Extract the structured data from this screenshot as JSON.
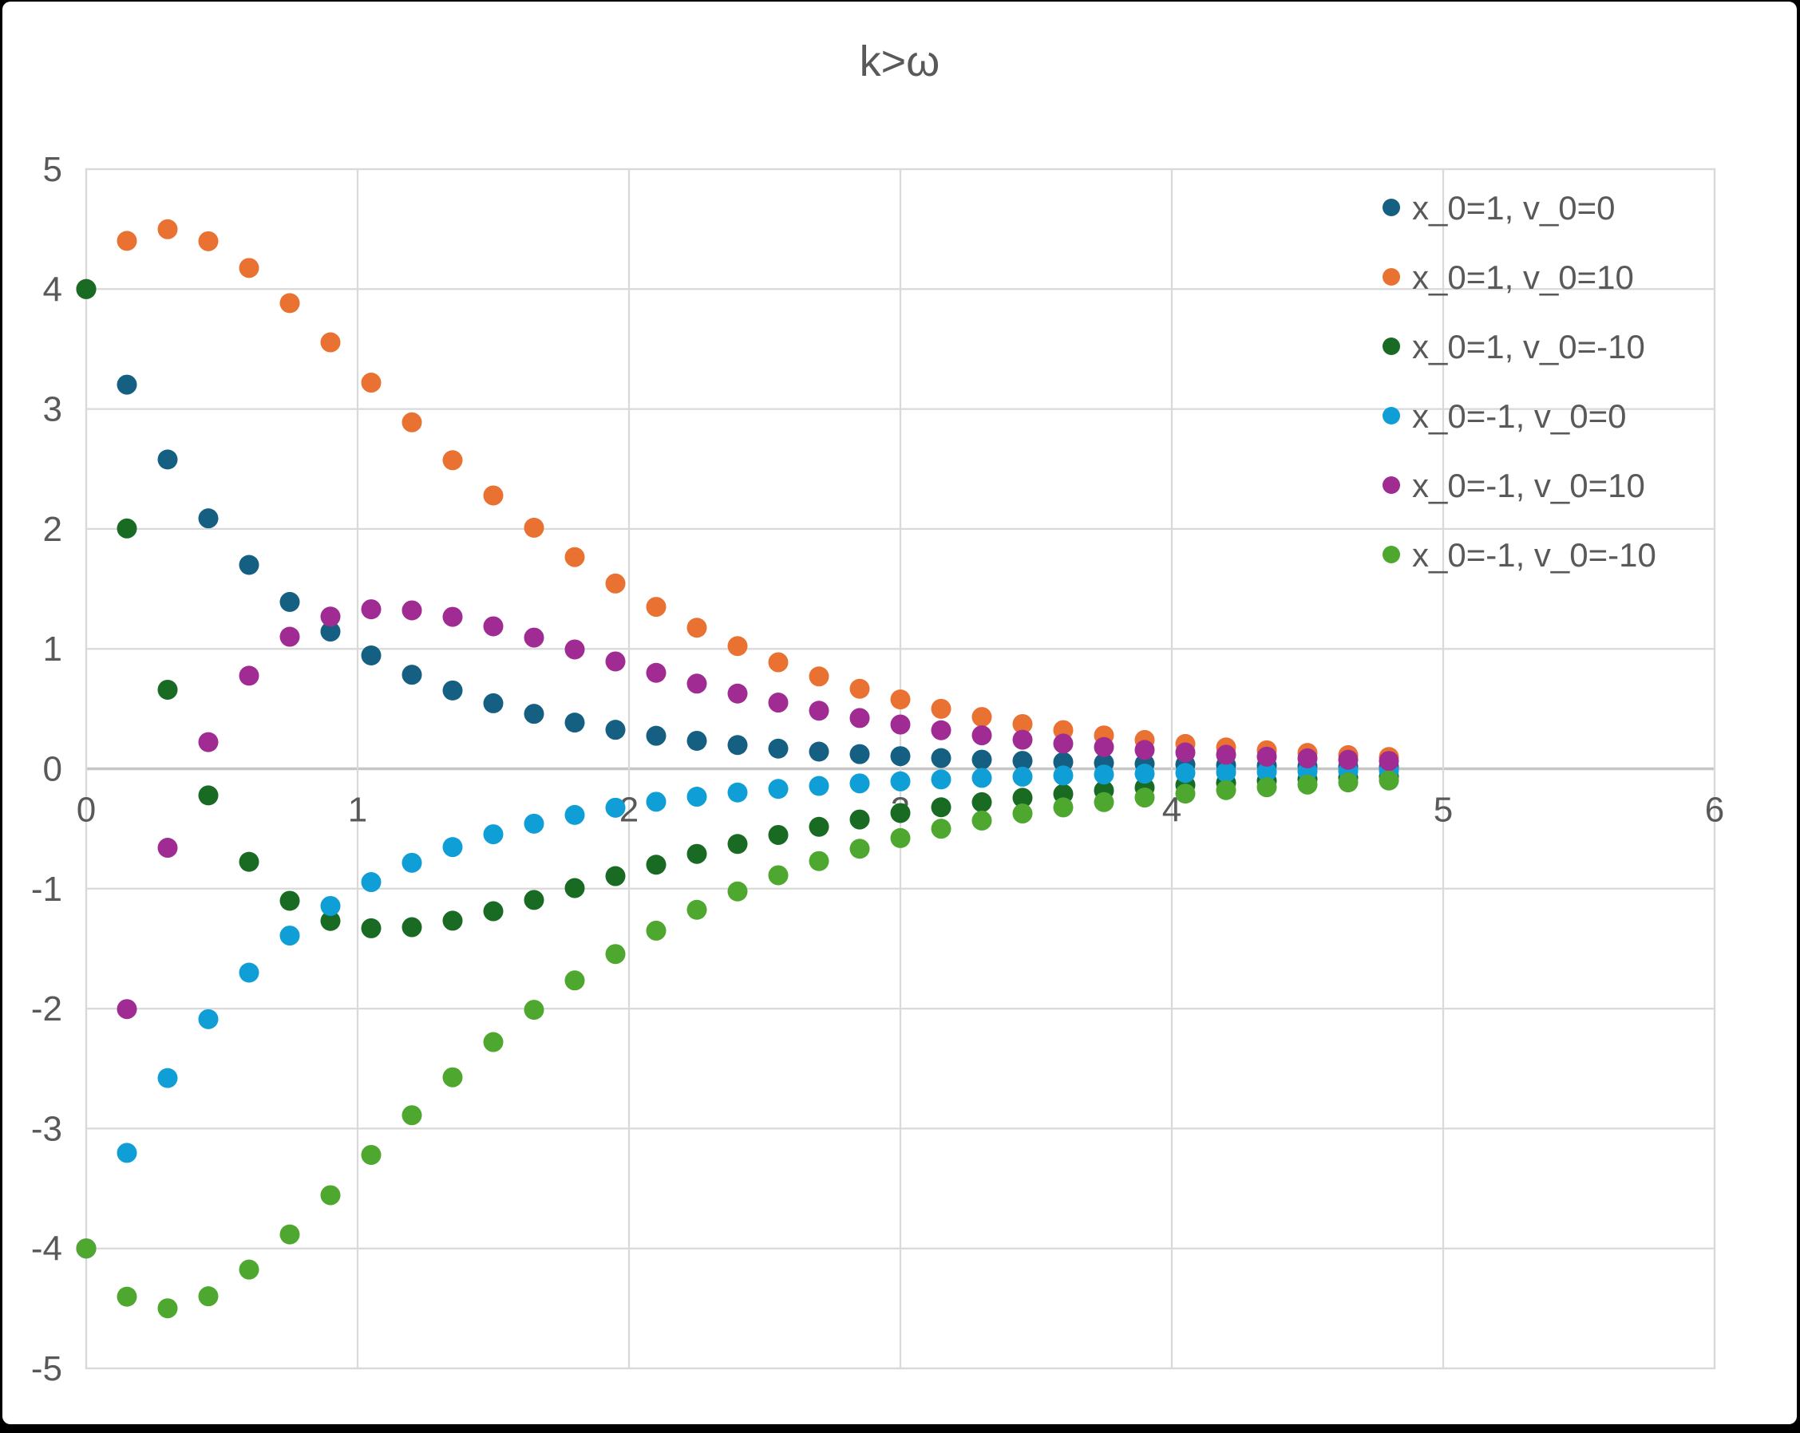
{
  "title": {
    "text": "k>ω",
    "color": "#595959"
  },
  "axes": {
    "x": {
      "min": 0,
      "max": 6,
      "tick_step": 1,
      "tick_labels": [
        "0",
        "1",
        "2",
        "3",
        "4",
        "5",
        "6"
      ]
    },
    "y": {
      "min": -5,
      "max": 5,
      "tick_step": 1,
      "tick_labels": [
        "5",
        "4",
        "3",
        "2",
        "1",
        "0",
        "-1",
        "-2",
        "-3",
        "-4",
        "-5"
      ]
    },
    "label_color": "#595959",
    "gridline_color": "#D9D9D9",
    "zero_line_color": "#C6C6C6",
    "plot_border_color": "#D9D9D9"
  },
  "legend": {
    "position": "right-top",
    "text_color": "#595959"
  },
  "chart_data": {
    "type": "scatter",
    "title": "k>ω",
    "xlabel": "",
    "ylabel": "",
    "xlim": [
      0,
      6
    ],
    "ylim": [
      -5,
      5
    ],
    "grid": true,
    "x": [
      0,
      0.15,
      0.3,
      0.45,
      0.6,
      0.75,
      0.9,
      1.05,
      1.2,
      1.35,
      1.5,
      1.65,
      1.8,
      1.95,
      2.1,
      2.25,
      2.4,
      2.55,
      2.7,
      2.85,
      3,
      3.15,
      3.3,
      3.45,
      3.6,
      3.75,
      3.9,
      4.05,
      4.2,
      4.35,
      4.5,
      4.65,
      4.8
    ],
    "series": [
      {
        "name": "x_0=1, v_0=0",
        "color": "#156082",
        "values": [
          4,
          3.203,
          2.579,
          2.088,
          1.7,
          1.391,
          1.144,
          0.945,
          0.784,
          0.653,
          0.546,
          0.458,
          0.385,
          0.325,
          0.275,
          0.233,
          0.198,
          0.168,
          0.143,
          0.122,
          0.105,
          0.089,
          0.076,
          0.066,
          0.056,
          0.048,
          0.041,
          0.035,
          0.03,
          0.026,
          0.022,
          0.019,
          0.017
        ]
      },
      {
        "name": "x_0=1, v_0=10",
        "color": "#E97132",
        "values": [
          4,
          4.402,
          4.499,
          4.399,
          4.176,
          3.883,
          3.556,
          3.22,
          2.889,
          2.573,
          2.279,
          2.01,
          1.765,
          1.545,
          1.35,
          1.176,
          1.023,
          0.888,
          0.77,
          0.667,
          0.578,
          0.5,
          0.432,
          0.373,
          0.322,
          0.278,
          0.24,
          0.207,
          0.178,
          0.154,
          0.132,
          0.114,
          0.098
        ]
      },
      {
        "name": "x_0=1, v_0=-10",
        "color": "#196B24",
        "values": [
          4,
          2.004,
          0.659,
          -0.222,
          -0.776,
          -1.101,
          -1.269,
          -1.33,
          -1.321,
          -1.267,
          -1.188,
          -1.094,
          -0.995,
          -0.895,
          -0.8,
          -0.71,
          -0.627,
          -0.552,
          -0.484,
          -0.423,
          -0.369,
          -0.321,
          -0.279,
          -0.242,
          -0.21,
          -0.181,
          -0.157,
          -0.136,
          -0.117,
          -0.101,
          -0.087,
          -0.075,
          -0.065
        ]
      },
      {
        "name": "x_0=-1, v_0=0",
        "color": "#0F9ED5",
        "values": [
          -4,
          -3.203,
          -2.579,
          -2.088,
          -1.7,
          -1.391,
          -1.144,
          -0.945,
          -0.784,
          -0.653,
          -0.546,
          -0.458,
          -0.385,
          -0.325,
          -0.275,
          -0.233,
          -0.198,
          -0.168,
          -0.143,
          -0.122,
          -0.105,
          -0.089,
          -0.076,
          -0.066,
          -0.056,
          -0.048,
          -0.041,
          -0.035,
          -0.03,
          -0.026,
          -0.022,
          -0.019,
          -0.017
        ]
      },
      {
        "name": "x_0=-1, v_0=10",
        "color": "#A02B93",
        "values": [
          -4,
          -2.004,
          -0.659,
          0.222,
          0.776,
          1.101,
          1.269,
          1.33,
          1.321,
          1.267,
          1.188,
          1.094,
          0.995,
          0.895,
          0.8,
          0.71,
          0.627,
          0.552,
          0.484,
          0.423,
          0.369,
          0.321,
          0.279,
          0.242,
          0.21,
          0.181,
          0.157,
          0.136,
          0.117,
          0.101,
          0.087,
          0.075,
          0.065
        ]
      },
      {
        "name": "x_0=-1, v_0=-10",
        "color": "#4EA72E",
        "values": [
          -4,
          -4.402,
          -4.499,
          -4.399,
          -4.176,
          -3.883,
          -3.556,
          -3.22,
          -2.889,
          -2.573,
          -2.279,
          -2.01,
          -1.765,
          -1.545,
          -1.35,
          -1.176,
          -1.023,
          -0.888,
          -0.77,
          -0.667,
          -0.578,
          -0.5,
          -0.432,
          -0.373,
          -0.322,
          -0.278,
          -0.24,
          -0.207,
          -0.178,
          -0.154,
          -0.132,
          -0.114,
          -0.098
        ]
      }
    ]
  }
}
